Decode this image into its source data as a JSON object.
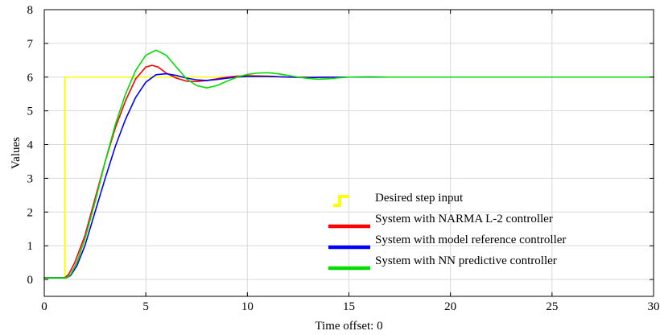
{
  "chart_data": {
    "type": "line",
    "xlabel": "Time offset:  0",
    "ylabel": "Values",
    "xlim": [
      0,
      30
    ],
    "ylim": [
      -0.5,
      8
    ],
    "xticks": [
      0,
      5,
      10,
      15,
      20,
      25,
      30
    ],
    "yticks": [
      0,
      1,
      2,
      3,
      4,
      5,
      6,
      7,
      8
    ],
    "grid": true,
    "legend_position": "lower-right",
    "series": [
      {
        "name": "Desired step input",
        "color": "#ffff00",
        "x": [
          0,
          1,
          1,
          30
        ],
        "y": [
          0.05,
          0.05,
          6,
          6
        ]
      },
      {
        "name": "System with NARMA L-2 controller",
        "color": "#ff0000",
        "x": [
          0,
          1,
          1.2,
          1.5,
          2,
          2.5,
          3,
          3.5,
          4,
          4.5,
          5,
          5.3,
          5.6,
          6,
          6.5,
          7,
          7.5,
          8,
          8.5,
          9,
          9.5,
          10,
          11,
          12,
          13,
          14,
          15,
          17,
          20,
          30
        ],
        "y": [
          0.05,
          0.05,
          0.15,
          0.5,
          1.3,
          2.4,
          3.5,
          4.5,
          5.3,
          5.95,
          6.3,
          6.35,
          6.3,
          6.12,
          5.97,
          5.88,
          5.87,
          5.9,
          5.95,
          6.0,
          6.03,
          6.04,
          6.03,
          6.0,
          5.99,
          6.0,
          6.0,
          6.0,
          6.0,
          6.0
        ]
      },
      {
        "name": "System with model reference controller",
        "color": "#0000ff",
        "x": [
          0,
          1.1,
          1.3,
          1.6,
          2,
          2.5,
          3,
          3.5,
          4,
          4.5,
          5,
          5.5,
          6,
          6.5,
          7,
          7.5,
          8,
          8.5,
          9,
          9.5,
          10,
          11,
          12,
          13,
          15,
          20,
          30
        ],
        "y": [
          0.05,
          0.05,
          0.12,
          0.4,
          1.0,
          2.0,
          3.0,
          3.95,
          4.75,
          5.4,
          5.85,
          6.07,
          6.1,
          6.05,
          5.97,
          5.92,
          5.9,
          5.93,
          5.97,
          6.0,
          6.02,
          6.02,
          6.0,
          5.99,
          6.0,
          6.0,
          6.0
        ]
      },
      {
        "name": "System with NN predictive controller",
        "color": "#00dd00",
        "x": [
          0,
          1.1,
          1.3,
          1.6,
          2,
          2.5,
          3,
          3.5,
          4,
          4.5,
          5,
          5.5,
          6,
          6.5,
          7,
          7.5,
          8,
          8.5,
          9,
          9.5,
          10,
          10.5,
          11,
          11.5,
          12,
          12.5,
          13,
          13.5,
          14,
          14.5,
          15,
          16,
          17,
          18,
          20,
          30
        ],
        "y": [
          0.05,
          0.05,
          0.15,
          0.5,
          1.2,
          2.3,
          3.5,
          4.6,
          5.5,
          6.2,
          6.65,
          6.8,
          6.65,
          6.3,
          5.95,
          5.75,
          5.68,
          5.75,
          5.88,
          6.0,
          6.08,
          6.12,
          6.13,
          6.1,
          6.05,
          6.0,
          5.96,
          5.94,
          5.95,
          5.98,
          6.0,
          6.01,
          6.0,
          6.0,
          6.0,
          6.0
        ]
      }
    ]
  }
}
